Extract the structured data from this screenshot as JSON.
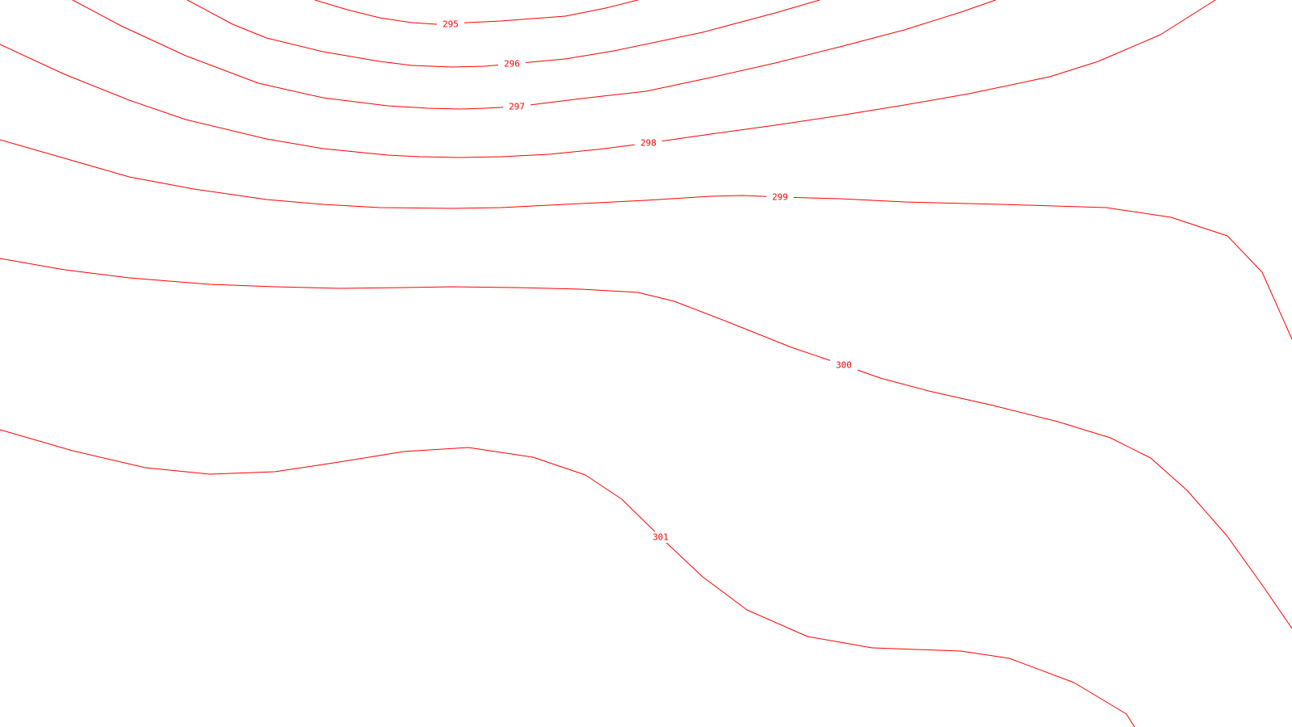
{
  "map": {
    "contour_color": "#ff0000",
    "background_color": "#ffffff",
    "contours": [
      {
        "level": "295"
      },
      {
        "level": "296"
      },
      {
        "level": "297"
      },
      {
        "level": "298"
      },
      {
        "level": "299"
      },
      {
        "level": "300"
      },
      {
        "level": "301"
      }
    ]
  }
}
